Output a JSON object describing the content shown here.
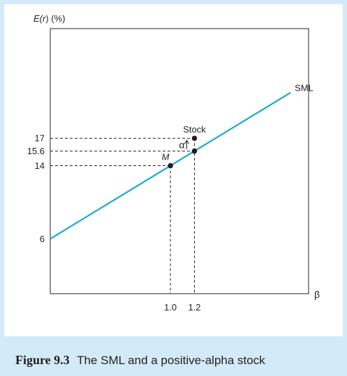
{
  "chart_data": {
    "type": "line",
    "ylabel_parts": [
      "E(",
      "r",
      ") (%)"
    ],
    "xlabel": "β",
    "xlim": [
      0,
      2.15
    ],
    "ylim": [
      0,
      29
    ],
    "xticks": [
      {
        "value": 1.0,
        "label": "1.0"
      },
      {
        "value": 1.2,
        "label": "1.2"
      }
    ],
    "yticks": [
      {
        "value": 6,
        "label": "6"
      },
      {
        "value": 14,
        "label": "14"
      },
      {
        "value": 15.6,
        "label": "15.6"
      },
      {
        "value": 17,
        "label": "17"
      }
    ],
    "series": [
      {
        "name": "SML",
        "x": [
          0,
          2.0
        ],
        "y": [
          6,
          22
        ],
        "color": "#1aa7d6"
      }
    ],
    "points": [
      {
        "label": "M",
        "x": 1.0,
        "y": 14,
        "italic": true
      },
      {
        "label": "",
        "x": 1.2,
        "y": 15.6
      },
      {
        "label": "Stock",
        "x": 1.2,
        "y": 17
      }
    ],
    "annotations": [
      {
        "label": "α",
        "x": 1.2,
        "y_from": 15.6,
        "y_to": 17
      }
    ],
    "grid": false
  },
  "caption": {
    "figure_number": "Figure 9.3",
    "text": "The SML and a positive-alpha stock"
  }
}
